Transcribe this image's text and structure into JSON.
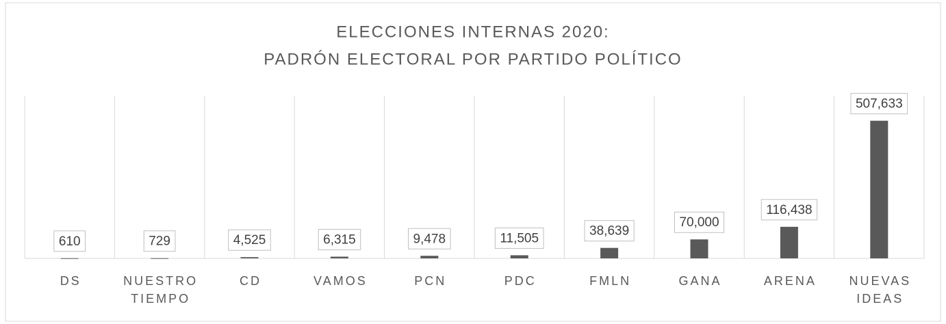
{
  "chart_data": {
    "type": "bar",
    "title": [
      "ELECCIONES INTERNAS 2020:",
      "PADRÓN ELECTORAL POR PARTIDO POLÍTICO"
    ],
    "categories": [
      "DS",
      "NUESTRO TIEMPO",
      "CD",
      "VAMOS",
      "PCN",
      "PDC",
      "FMLN",
      "GANA",
      "ARENA",
      "NUEVAS IDEAS"
    ],
    "values": [
      610,
      729,
      4525,
      6315,
      9478,
      11505,
      38639,
      70000,
      116438,
      507633
    ],
    "value_labels": [
      "610",
      "729",
      "4,525",
      "6,315",
      "9,478",
      "11,505",
      "38,639",
      "70,000",
      "116,438",
      "507,633"
    ],
    "color": "#595959",
    "ylim": [
      0,
      600000
    ]
  }
}
